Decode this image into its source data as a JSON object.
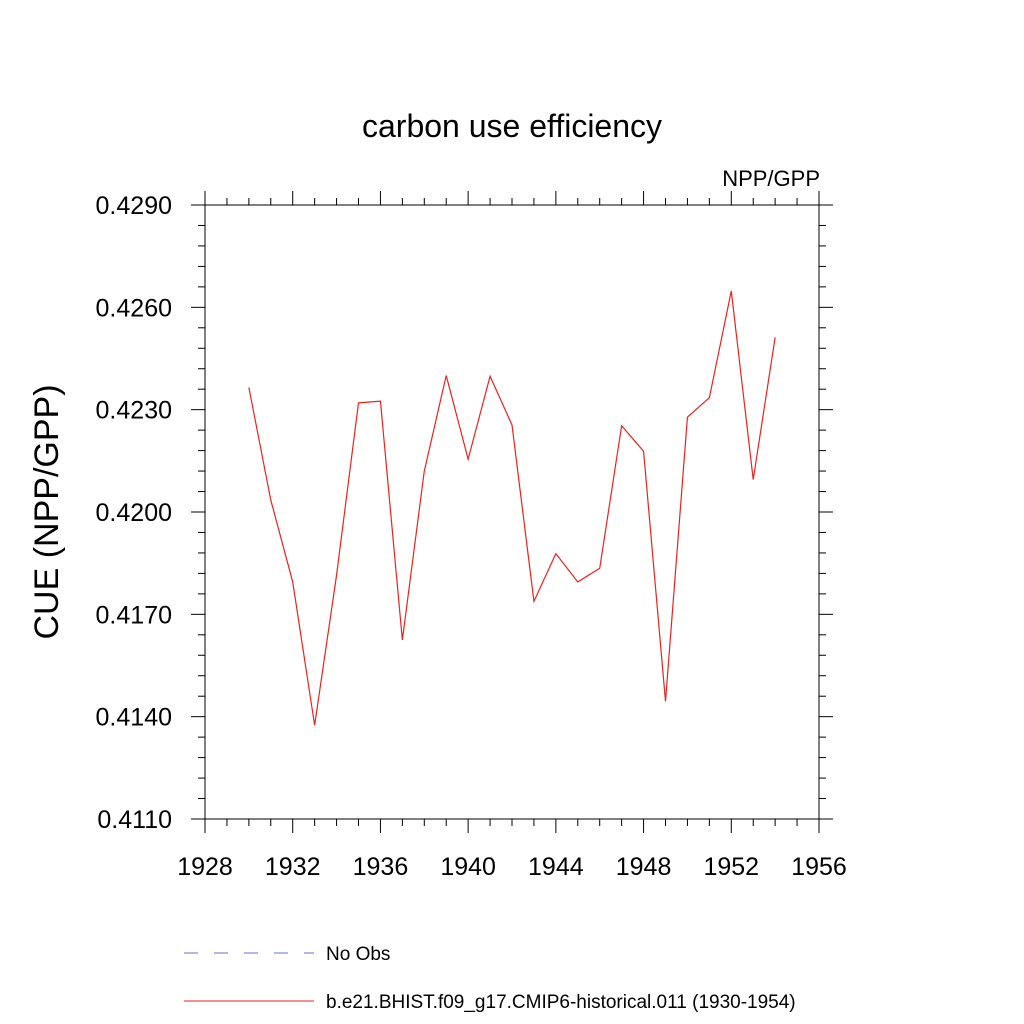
{
  "chart_data": {
    "type": "line",
    "title": "carbon use efficiency",
    "subtitle": "NPP/GPP",
    "xlabel": "",
    "ylabel": "CUE  (NPP/GPP)",
    "xlim": [
      1928,
      1956
    ],
    "ylim": [
      0.411,
      0.429
    ],
    "x_ticks": [
      "1928",
      "1932",
      "1936",
      "1940",
      "1944",
      "1948",
      "1952",
      "1956"
    ],
    "y_ticks": [
      "0.4110",
      "0.4140",
      "0.4170",
      "0.4200",
      "0.4230",
      "0.4260",
      "0.4290"
    ],
    "grid": false,
    "legend_position": "bottom",
    "legend": [
      {
        "label": "No Obs",
        "style": "dashed",
        "color": "#6b6bd6"
      },
      {
        "label": "b.e21.BHIST.f09_g17.CMIP6-historical.011 (1930-1954)",
        "style": "solid",
        "color": "#e8231f"
      }
    ],
    "series": [
      {
        "name": "b.e21.BHIST.f09_g17.CMIP6-historical.011 (1930-1954)",
        "color": "#e8231f",
        "x": [
          1930,
          1931,
          1932,
          1933,
          1934,
          1935,
          1936,
          1937,
          1938,
          1939,
          1940,
          1941,
          1942,
          1943,
          1944,
          1945,
          1946,
          1947,
          1948,
          1949,
          1950,
          1951,
          1952,
          1953,
          1954
        ],
        "y": [
          0.42365,
          0.42035,
          0.41795,
          0.41375,
          0.41815,
          0.4232,
          0.42325,
          0.41625,
          0.4212,
          0.424,
          0.42155,
          0.42398,
          0.42255,
          0.41738,
          0.41878,
          0.41795,
          0.41835,
          0.42253,
          0.42178,
          0.41445,
          0.42278,
          0.42335,
          0.42648,
          0.42095,
          0.42512
        ]
      }
    ]
  }
}
